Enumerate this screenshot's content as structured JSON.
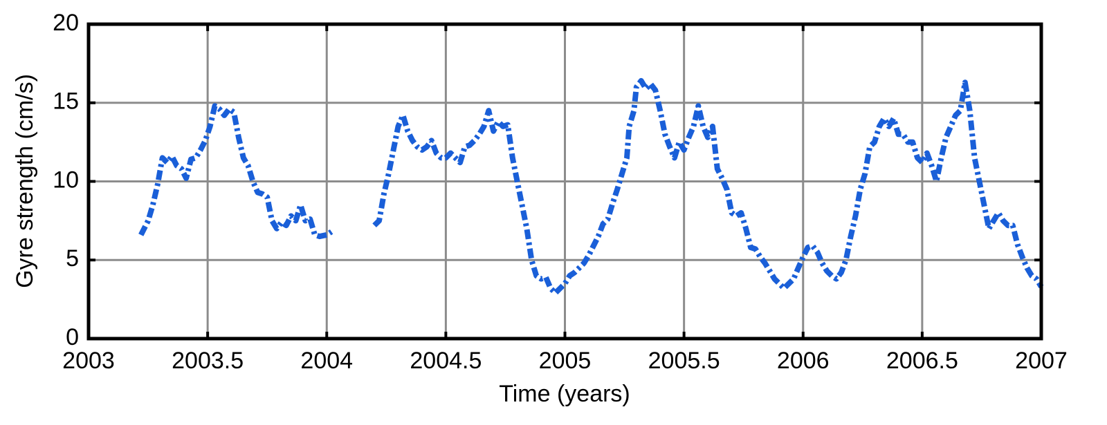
{
  "chart_data": {
    "type": "line",
    "xlabel": "Time (years)",
    "ylabel": "Gyre strength (cm/s)",
    "color": "#1a5fd8",
    "x": [
      2003.22,
      2003.25,
      2003.27,
      2003.29,
      2003.31,
      2003.33,
      2003.35,
      2003.37,
      2003.39,
      2003.41,
      2003.43,
      2003.45,
      2003.47,
      2003.49,
      2003.51,
      2003.53,
      2003.55,
      2003.57,
      2003.59,
      2003.61,
      2003.63,
      2003.65,
      2003.67,
      2003.69,
      2003.71,
      2003.73,
      2003.75,
      2003.77,
      2003.79,
      2003.81,
      2003.83,
      2003.85,
      2003.87,
      2003.89,
      2003.91,
      2003.93,
      2003.95,
      2003.97,
      2004.0,
      2004.02,
      2004.1,
      2004.2,
      2004.22,
      2004.24,
      2004.26,
      2004.28,
      2004.3,
      2004.32,
      2004.34,
      2004.36,
      2004.38,
      2004.4,
      2004.42,
      2004.44,
      2004.46,
      2004.48,
      2004.5,
      2004.52,
      2004.54,
      2004.56,
      2004.58,
      2004.6,
      2004.62,
      2004.64,
      2004.66,
      2004.68,
      2004.7,
      2004.72,
      2004.74,
      2004.76,
      2004.78,
      2004.8,
      2004.82,
      2004.84,
      2004.86,
      2004.88,
      2004.9,
      2004.92,
      2004.94,
      2004.96,
      2004.98,
      2005.0,
      2005.02,
      2005.04,
      2005.06,
      2005.08,
      2005.1,
      2005.14,
      2005.16,
      2005.18,
      2005.2,
      2005.22,
      2005.24,
      2005.26,
      2005.27,
      2005.29,
      2005.3,
      2005.32,
      2005.34,
      2005.36,
      2005.38,
      2005.4,
      2005.42,
      2005.44,
      2005.46,
      2005.48,
      2005.5,
      2005.52,
      2005.54,
      2005.56,
      2005.58,
      2005.6,
      2005.62,
      2005.64,
      2005.66,
      2005.68,
      2005.7,
      2005.72,
      2005.74,
      2005.76,
      2005.78,
      2005.8,
      2005.82,
      2005.84,
      2005.86,
      2005.88,
      2005.9,
      2005.92,
      2005.94,
      2005.96,
      2005.98,
      2006.0,
      2006.02,
      2006.04,
      2006.06,
      2006.08,
      2006.1,
      2006.12,
      2006.14,
      2006.16,
      2006.18,
      2006.2,
      2006.22,
      2006.24,
      2006.26,
      2006.28,
      2006.3,
      2006.32,
      2006.34,
      2006.36,
      2006.38,
      2006.4,
      2006.42,
      2006.44,
      2006.46,
      2006.48,
      2006.5,
      2006.52,
      2006.54,
      2006.56,
      2006.58,
      2006.6,
      2006.62,
      2006.64,
      2006.66,
      2006.68,
      2006.7,
      2006.72,
      2006.74,
      2006.76,
      2006.78,
      2006.8,
      2006.82,
      2006.84,
      2006.86,
      2006.88,
      2006.9,
      2006.92,
      2006.94,
      2006.96,
      2006.98,
      2007.0
    ],
    "values": [
      6.6,
      7.5,
      8.5,
      9.8,
      11.5,
      11.2,
      11.6,
      11.0,
      10.8,
      10.2,
      11.4,
      11.5,
      12.0,
      12.6,
      13.5,
      14.8,
      14.6,
      14.2,
      14.6,
      14.4,
      12.8,
      11.5,
      11.0,
      10.0,
      9.3,
      9.2,
      9.0,
      7.5,
      7.0,
      7.4,
      7.2,
      7.8,
      7.5,
      8.5,
      7.5,
      7.6,
      6.6,
      6.5,
      6.6,
      6.8,
      null,
      7.2,
      7.5,
      9.2,
      10.5,
      12.0,
      13.5,
      14.2,
      13.2,
      12.6,
      12.2,
      12.0,
      12.2,
      12.6,
      11.8,
      11.5,
      11.5,
      11.8,
      11.5,
      11.2,
      12.2,
      12.3,
      12.6,
      13.0,
      13.5,
      14.5,
      13.2,
      13.8,
      13.5,
      13.6,
      11.5,
      10.0,
      8.5,
      7.0,
      5.0,
      4.0,
      3.8,
      3.9,
      3.2,
      2.9,
      3.2,
      3.5,
      4.0,
      4.2,
      4.5,
      4.8,
      5.3,
      6.5,
      7.3,
      7.6,
      8.6,
      9.5,
      10.5,
      11.5,
      13.5,
      14.5,
      16.0,
      16.4,
      15.9,
      16.2,
      15.8,
      14.5,
      13.0,
      12.2,
      11.5,
      12.5,
      12.0,
      12.8,
      13.5,
      14.8,
      13.5,
      12.8,
      13.5,
      10.8,
      10.2,
      9.5,
      8.0,
      7.8,
      8.0,
      7.0,
      5.8,
      5.7,
      5.2,
      4.8,
      4.3,
      3.8,
      3.5,
      3.2,
      3.5,
      3.8,
      4.5,
      5.2,
      5.8,
      5.9,
      5.5,
      4.8,
      4.3,
      4.0,
      3.8,
      4.2,
      5.0,
      6.5,
      7.8,
      9.5,
      10.5,
      12.2,
      12.5,
      13.5,
      14.0,
      13.5,
      14.0,
      13.0,
      13.0,
      12.5,
      12.5,
      11.5,
      11.2,
      11.8,
      11.0,
      10.0,
      11.5,
      12.8,
      13.5,
      14.2,
      14.5,
      16.3,
      14.5,
      11.5,
      10.0,
      8.5,
      7.0,
      7.5,
      8.0,
      7.5,
      7.2,
      7.2,
      6.0,
      5.2,
      4.5,
      4.0,
      3.8,
      3.3
    ],
    "xlim": [
      2003,
      2007
    ],
    "xticks": [
      2003,
      2003.5,
      2004,
      2004.5,
      2005,
      2005.5,
      2006,
      2006.5,
      2007
    ],
    "ylim": [
      0,
      20
    ],
    "yticks": [
      0,
      5,
      10,
      15,
      20
    ],
    "grid": true
  }
}
